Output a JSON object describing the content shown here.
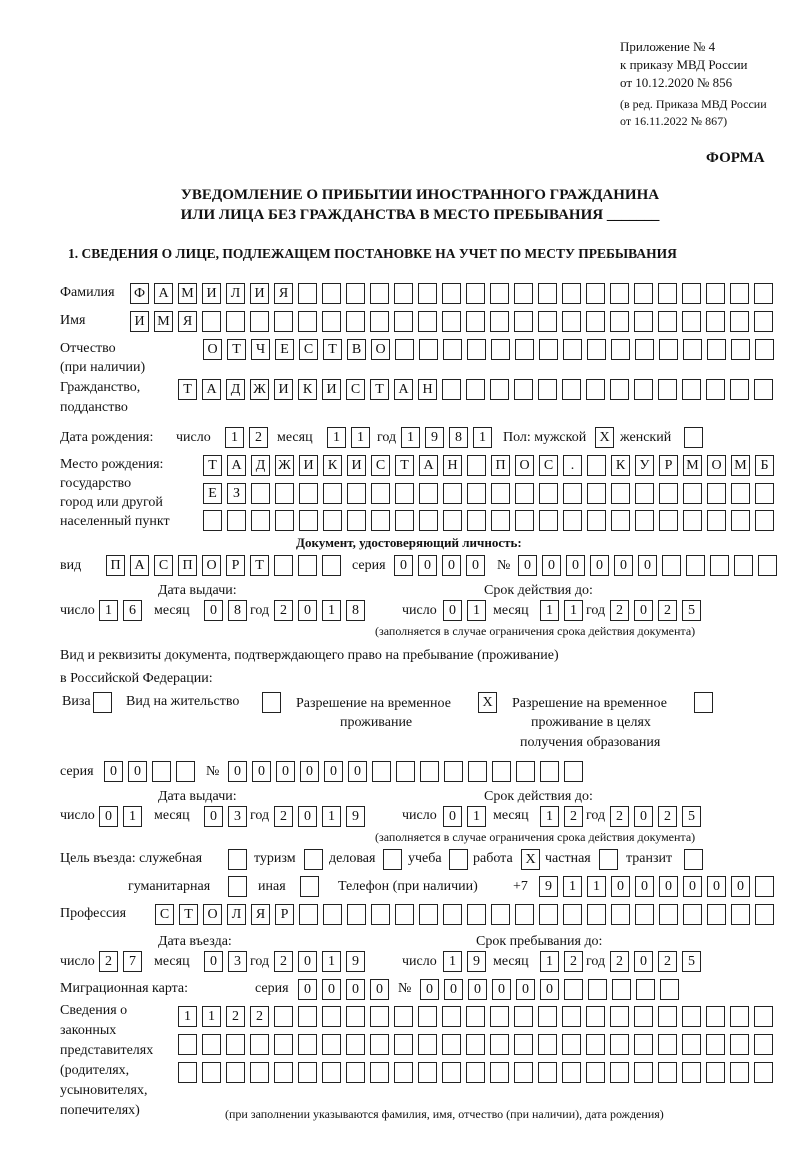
{
  "header": {
    "appendix": [
      "Приложение № 4",
      "к приказу МВД России",
      "от 10.12.2020 № 856"
    ],
    "edition": [
      "(в ред. Приказа МВД России",
      "от 16.11.2022 № 867)"
    ],
    "form_label": "ФОРМА",
    "title_line1": "УВЕДОМЛЕНИЕ О ПРИБЫТИИ ИНОСТРАННОГО ГРАЖДАНИНА",
    "title_line2": "ИЛИ ЛИЦА БЕЗ ГРАЖДАНСТВА В МЕСТО ПРЕБЫВАНИЯ _______",
    "section1": "1. СВЕДЕНИЯ О ЛИЦЕ, ПОДЛЕЖАЩЕМ ПОСТАНОВКЕ НА УЧЕТ ПО МЕСТУ ПРЕБЫВАНИЯ"
  },
  "labels": {
    "surname": "Фамилия",
    "name": "Имя",
    "patronymic": "Отчество",
    "patronymic_note": "(при наличии)",
    "citizenship1": "Гражданство,",
    "citizenship2": "подданство",
    "birth_date": "Дата рождения:",
    "day": "число",
    "month": "месяц",
    "year": "год",
    "sex": "Пол: мужской",
    "female": "женский",
    "birthplace1": "Место рождения:",
    "birthplace2": "государство",
    "birthplace3": "город или другой",
    "birthplace4": "населенный пункт",
    "id_doc": "Документ, удостоверяющий личность:",
    "kind": "вид",
    "series": "серия",
    "number": "№",
    "issue_date": "Дата выдачи:",
    "valid_until": "Срок действия до:",
    "validity_note": "(заполняется в случае ограничения срока действия документа)",
    "right_doc1": "Вид и реквизиты документа, подтверждающего право на пребывание (проживание)",
    "right_doc2": "в Российской Федерации:",
    "visa": "Виза",
    "residence": "Вид на жительство",
    "temp1": "Разрешение на временное",
    "temp2": "проживание",
    "edu1": "Разрешение на временное",
    "edu2": "проживание в целях",
    "edu3": "получения образования",
    "purpose": "Цель въезда: служебная",
    "tourism": "туризм",
    "business": "деловая",
    "study": "учеба",
    "work": "работа",
    "private": "частная",
    "transit": "транзит",
    "humanitarian": "гуманитарная",
    "other": "иная",
    "phone": "Телефон (при наличии)",
    "phone_prefix": "+7",
    "profession": "Профессия",
    "entry_date": "Дата въезда:",
    "stay_until": "Срок пребывания до:",
    "migration_card": "Миграционная карта:",
    "reps": [
      "Сведения о",
      "законных",
      "представителях",
      "(родителях,",
      "усыновителях,",
      "попечителях)"
    ],
    "reps_note": "(при заполнении указываются фамилия, имя, отчество (при наличии), дата рождения)"
  },
  "fields": {
    "surname": "ФАМИЛИЯ",
    "name": "ИМЯ",
    "patronymic": "ОТЧЕСТВО",
    "citizenship": "ТАДЖИКИСТАН",
    "birth_day": "12",
    "birth_month": "11",
    "birth_year": "1981",
    "sex_male": "X",
    "sex_female": "",
    "birthplace_1": "ТАДЖИКИСТАН ПОС. КУРМОМБ",
    "birthplace_2": "ЕЗ",
    "birthplace_3": "",
    "id_kind": "ПАСПОРТ",
    "id_series": "0000",
    "id_number": "000000",
    "id_issue_day": "16",
    "id_issue_month": "08",
    "id_issue_year": "2018",
    "id_valid_day": "01",
    "id_valid_month": "11",
    "id_valid_year": "2025",
    "visa": "",
    "residence_permit": "",
    "temp_residence": "X",
    "temp_residence_edu": "",
    "rd_series": "00",
    "rd_number": "000000",
    "rd_issue_day": "01",
    "rd_issue_month": "03",
    "rd_issue_year": "2019",
    "rd_valid_day": "01",
    "rd_valid_month": "12",
    "rd_valid_year": "2025",
    "p_service": "",
    "p_tourism": "",
    "p_business": "",
    "p_study": "",
    "p_work": "X",
    "p_private": "",
    "p_transit": "",
    "p_humanitarian": "",
    "p_other": "",
    "phone": "911000000",
    "profession": "СТОЛЯР",
    "entry_day": "27",
    "entry_month": "03",
    "entry_year": "2019",
    "stay_day": "19",
    "stay_month": "12",
    "stay_year": "2025",
    "mc_series": "0000",
    "mc_number": "000000",
    "reps_1": "1122",
    "reps_2": "",
    "reps_3": ""
  }
}
